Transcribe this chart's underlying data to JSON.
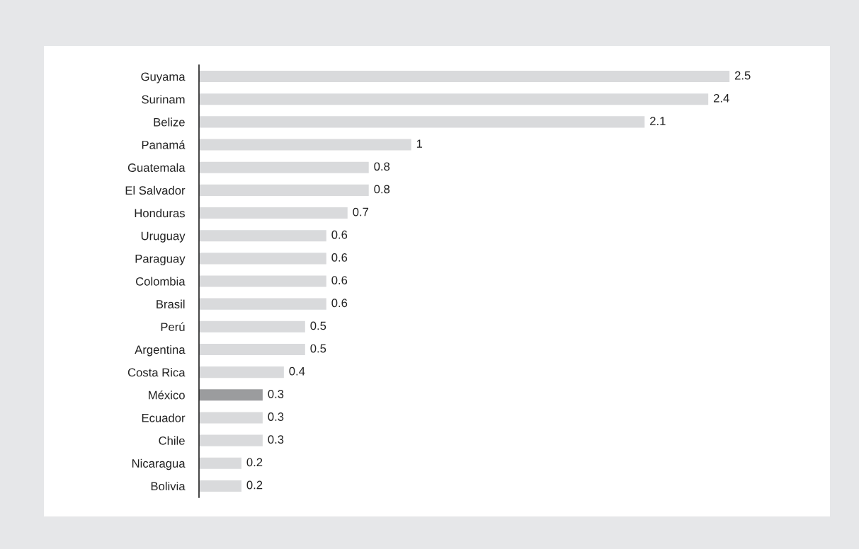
{
  "chart_data": {
    "type": "bar",
    "orientation": "horizontal",
    "categories": [
      "Guyama",
      "Surinam",
      "Belize",
      "Panamá",
      "Guatemala",
      "El Salvador",
      "Honduras",
      "Uruguay",
      "Paraguay",
      "Colombia",
      "Brasil",
      "Perú",
      "Argentina",
      "Costa Rica",
      "México",
      "Ecuador",
      "Chile",
      "Nicaragua",
      "Bolivia"
    ],
    "values": [
      2.5,
      2.4,
      2.1,
      1,
      0.8,
      0.8,
      0.7,
      0.6,
      0.6,
      0.6,
      0.6,
      0.5,
      0.5,
      0.4,
      0.3,
      0.3,
      0.3,
      0.2,
      0.2
    ],
    "colors": [
      "#d9dadc",
      "#d9dadc",
      "#d9dadc",
      "#d9dadc",
      "#d9dadc",
      "#d9dadc",
      "#d9dadc",
      "#d9dadc",
      "#d9dadc",
      "#d9dadc",
      "#d9dadc",
      "#d9dadc",
      "#d9dadc",
      "#d9dadc",
      "#9b9c9e",
      "#d9dadc",
      "#d9dadc",
      "#d9dadc",
      "#d9dadc"
    ],
    "data_labels": true,
    "grid": false,
    "legend": false
  }
}
